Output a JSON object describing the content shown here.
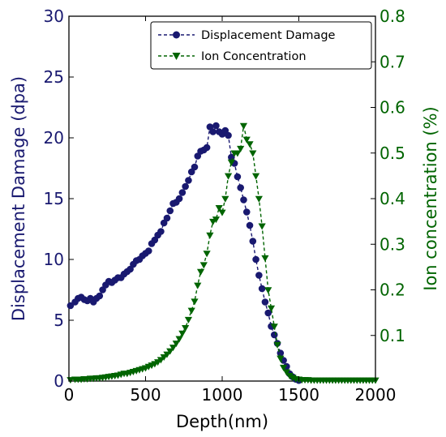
{
  "chart_data": {
    "type": "line",
    "title": "",
    "xlabel": "Depth(nm)",
    "ylabel_left": "Displacement Damage (dpa)",
    "ylabel_right": "Ion concentration (%)",
    "xlim": [
      0,
      2000
    ],
    "ylim_left": [
      0,
      30
    ],
    "ylim_right": [
      0,
      0.8
    ],
    "xticks": [
      0,
      500,
      1000,
      1500,
      2000
    ],
    "yticks_left": [
      0,
      5,
      10,
      15,
      20,
      25,
      30
    ],
    "yticks_right": [
      0.1,
      0.2,
      0.3,
      0.4,
      0.5,
      0.6,
      0.7,
      0.8
    ],
    "grid": false,
    "legend_position": "top-right",
    "series": [
      {
        "name": "Displacement Damage",
        "axis": "left",
        "color": "#191970",
        "marker": "circle",
        "x": [
          10,
          40,
          60,
          80,
          100,
          120,
          140,
          160,
          180,
          200,
          220,
          240,
          260,
          280,
          300,
          320,
          340,
          360,
          380,
          400,
          420,
          440,
          460,
          480,
          500,
          520,
          540,
          560,
          580,
          600,
          620,
          640,
          660,
          680,
          700,
          720,
          740,
          760,
          780,
          800,
          820,
          840,
          860,
          880,
          900,
          920,
          940,
          960,
          980,
          1000,
          1020,
          1040,
          1060,
          1080,
          1100,
          1120,
          1140,
          1160,
          1180,
          1200,
          1220,
          1240,
          1260,
          1280,
          1300,
          1320,
          1340,
          1360,
          1380,
          1400,
          1420,
          1440,
          1460,
          1480,
          1500
        ],
        "y": [
          6.2,
          6.5,
          6.8,
          6.9,
          6.7,
          6.6,
          6.8,
          6.5,
          6.8,
          7.0,
          7.5,
          7.9,
          8.2,
          8.1,
          8.3,
          8.5,
          8.5,
          8.8,
          9.0,
          9.2,
          9.6,
          9.9,
          10.0,
          10.3,
          10.5,
          10.7,
          11.3,
          11.6,
          12.0,
          12.3,
          13.0,
          13.4,
          14.0,
          14.6,
          14.7,
          15.0,
          15.5,
          16.0,
          16.5,
          17.2,
          17.6,
          18.5,
          18.9,
          19.0,
          19.2,
          20.9,
          20.5,
          21.0,
          20.5,
          20.3,
          20.6,
          20.2,
          18.4,
          17.9,
          16.8,
          15.9,
          14.9,
          13.9,
          12.8,
          11.5,
          10.0,
          8.7,
          7.6,
          6.5,
          5.6,
          4.5,
          3.8,
          3.1,
          2.3,
          1.7,
          1.2,
          0.6,
          0.35,
          0.15,
          0.05
        ]
      },
      {
        "name": "Ion Concentration",
        "axis": "right",
        "color": "#006400",
        "marker": "triangle-down",
        "x": [
          10,
          40,
          60,
          80,
          100,
          120,
          140,
          160,
          180,
          200,
          220,
          240,
          260,
          280,
          300,
          320,
          340,
          360,
          380,
          400,
          420,
          440,
          460,
          480,
          500,
          520,
          540,
          560,
          580,
          600,
          620,
          640,
          660,
          680,
          700,
          720,
          740,
          760,
          780,
          800,
          820,
          840,
          860,
          880,
          900,
          920,
          940,
          960,
          980,
          1000,
          1020,
          1040,
          1060,
          1080,
          1100,
          1120,
          1140,
          1160,
          1180,
          1200,
          1220,
          1240,
          1260,
          1280,
          1300,
          1320,
          1340,
          1360,
          1380,
          1400,
          1420,
          1440,
          1460,
          1480,
          1500,
          1520,
          1540,
          1560,
          1580,
          1600,
          1620,
          1640,
          1660,
          1680,
          1700,
          1720,
          1740,
          1760,
          1780,
          1800,
          1820,
          1840,
          1860,
          1880,
          1900,
          1920,
          1940,
          1960,
          1980,
          2000
        ],
        "y": [
          0.003,
          0.004,
          0.004,
          0.004,
          0.005,
          0.005,
          0.006,
          0.006,
          0.007,
          0.007,
          0.008,
          0.009,
          0.01,
          0.011,
          0.012,
          0.013,
          0.015,
          0.017,
          0.017,
          0.019,
          0.021,
          0.023,
          0.025,
          0.027,
          0.029,
          0.032,
          0.035,
          0.038,
          0.042,
          0.047,
          0.053,
          0.059,
          0.066,
          0.074,
          0.083,
          0.093,
          0.105,
          0.117,
          0.135,
          0.155,
          0.175,
          0.21,
          0.24,
          0.255,
          0.28,
          0.32,
          0.35,
          0.355,
          0.38,
          0.37,
          0.4,
          0.45,
          0.48,
          0.5,
          0.5,
          0.51,
          0.56,
          0.53,
          0.52,
          0.5,
          0.45,
          0.4,
          0.34,
          0.27,
          0.2,
          0.16,
          0.12,
          0.08,
          0.05,
          0.03,
          0.02,
          0.012,
          0.008,
          0.005,
          0.004,
          0.003,
          0.003,
          0.003,
          0.002,
          0.002,
          0.002,
          0.002,
          0.002,
          0.002,
          0.002,
          0.002,
          0.002,
          0.002,
          0.002,
          0.002,
          0.002,
          0.002,
          0.002,
          0.002,
          0.002,
          0.002,
          0.002,
          0.002,
          0.002,
          0.002
        ]
      }
    ]
  }
}
